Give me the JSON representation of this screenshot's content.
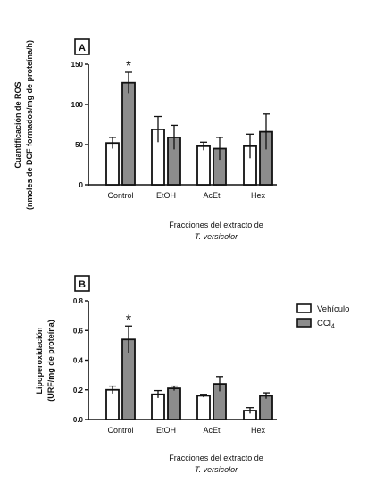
{
  "chart_data": [
    {
      "type": "bar",
      "panel_label": "A",
      "categories": [
        "Control",
        "EtOH",
        "AcEt",
        "Hex"
      ],
      "series": [
        {
          "name": "Vehículo",
          "color": "#ffffff",
          "values": [
            52,
            69,
            48,
            48
          ],
          "errors": [
            7,
            16,
            5,
            15
          ]
        },
        {
          "name": "CCl4",
          "color": "#8c8c8c",
          "values": [
            127,
            59,
            45,
            66
          ],
          "errors": [
            13,
            15,
            14,
            22
          ]
        }
      ],
      "ylabel_line1": "Cuantificación de ROS",
      "ylabel_line2": "(nmoles de DCF formados/mg de proteína/h)",
      "xlabel_line1": "Fracciones del extracto de",
      "xlabel_line2": "T. versicolor",
      "yticks": [
        "0",
        "50",
        "100",
        "150"
      ],
      "ylim": [
        0,
        150
      ],
      "significance": [
        {
          "category": "Control",
          "series": "CCl4",
          "mark": "*"
        }
      ]
    },
    {
      "type": "bar",
      "panel_label": "B",
      "categories": [
        "Control",
        "EtOH",
        "AcEt",
        "Hex"
      ],
      "series": [
        {
          "name": "Vehículo",
          "color": "#ffffff",
          "values": [
            0.2,
            0.17,
            0.16,
            0.06
          ],
          "errors": [
            0.025,
            0.025,
            0.01,
            0.02
          ]
        },
        {
          "name": "CCl4",
          "color": "#8c8c8c",
          "values": [
            0.54,
            0.21,
            0.24,
            0.16
          ],
          "errors": [
            0.09,
            0.015,
            0.05,
            0.02
          ]
        }
      ],
      "ylabel_line1": "Lipoperoxidación",
      "ylabel_line2": "(URF/mg de proteína)",
      "xlabel_line1": "Fracciones del extracto de",
      "xlabel_line2": "T. versicolor",
      "yticks": [
        "0.0",
        "0.2",
        "0.4",
        "0.6",
        "0.8"
      ],
      "ylim": [
        0,
        0.8
      ],
      "significance": [
        {
          "category": "Control",
          "series": "CCl4",
          "mark": "*"
        }
      ]
    }
  ],
  "legend": {
    "items": [
      {
        "label": "Vehículo",
        "color": "#ffffff"
      },
      {
        "label_main": "CCl",
        "label_sub": "4",
        "color": "#8c8c8c"
      }
    ],
    "placement": "right"
  }
}
